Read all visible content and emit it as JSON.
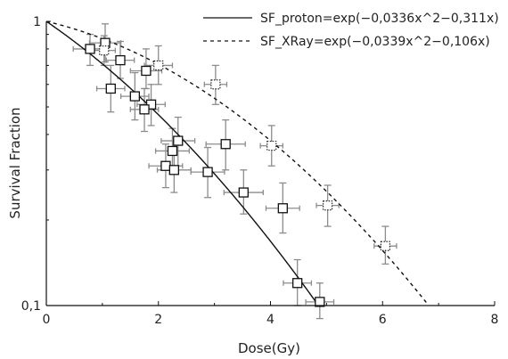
{
  "chart_data": {
    "type": "scatter",
    "xlabel": "Dose(Gy)",
    "ylabel": "Survival Fraction",
    "xlim": [
      0,
      8
    ],
    "ylim": [
      0.1,
      1
    ],
    "yscale": "log",
    "x_ticks": [
      0,
      2,
      4,
      6,
      8
    ],
    "x_tick_labels": [
      "0",
      "2",
      "4",
      "6",
      "8"
    ],
    "y_ticks": [
      0.1,
      1
    ],
    "y_tick_labels": [
      "0,1",
      "1"
    ],
    "grid": false,
    "legend_position": "top-right",
    "fit_curves": [
      {
        "name": "SF_proton=exp(−0,0336x^2−0,311x)",
        "style": "solid",
        "a": 0.0336,
        "b": 0.311
      },
      {
        "name": "SF_XRay=exp(−0,0339x^2−0,106x)",
        "style": "dashed",
        "a": 0.0339,
        "b": 0.106
      }
    ],
    "series": [
      {
        "marker": "square-solid",
        "points": [
          {
            "x": 0.78,
            "y": 0.8,
            "xerr": 0.3,
            "ylo": 0.7,
            "yhi": 0.9
          },
          {
            "x": 1.05,
            "y": 0.84,
            "xerr": 0.28,
            "ylo": 0.72,
            "yhi": 0.98
          },
          {
            "x": 1.32,
            "y": 0.73,
            "xerr": 0.25,
            "ylo": 0.63,
            "yhi": 0.85
          },
          {
            "x": 1.78,
            "y": 0.67,
            "xerr": 0.28,
            "ylo": 0.58,
            "yhi": 0.8
          },
          {
            "x": 1.15,
            "y": 0.58,
            "xerr": 0.25,
            "ylo": 0.48,
            "yhi": 0.7
          },
          {
            "x": 1.58,
            "y": 0.545,
            "xerr": 0.25,
            "ylo": 0.45,
            "yhi": 0.66
          },
          {
            "x": 1.87,
            "y": 0.51,
            "xerr": 0.25,
            "ylo": 0.43,
            "yhi": 0.6
          },
          {
            "x": 1.75,
            "y": 0.49,
            "xerr": 0.25,
            "ylo": 0.41,
            "yhi": 0.58
          },
          {
            "x": 2.35,
            "y": 0.38,
            "xerr": 0.3,
            "ylo": 0.31,
            "yhi": 0.46
          },
          {
            "x": 2.25,
            "y": 0.35,
            "xerr": 0.3,
            "ylo": 0.29,
            "yhi": 0.42
          },
          {
            "x": 2.13,
            "y": 0.31,
            "xerr": 0.3,
            "ylo": 0.26,
            "yhi": 0.37
          },
          {
            "x": 2.28,
            "y": 0.3,
            "xerr": 0.3,
            "ylo": 0.25,
            "yhi": 0.36
          },
          {
            "x": 2.88,
            "y": 0.295,
            "xerr": 0.3,
            "ylo": 0.24,
            "yhi": 0.36
          },
          {
            "x": 3.2,
            "y": 0.37,
            "xerr": 0.35,
            "ylo": 0.3,
            "yhi": 0.45
          },
          {
            "x": 3.52,
            "y": 0.25,
            "xerr": 0.35,
            "ylo": 0.21,
            "yhi": 0.3
          },
          {
            "x": 4.22,
            "y": 0.22,
            "xerr": 0.3,
            "ylo": 0.18,
            "yhi": 0.27
          },
          {
            "x": 4.48,
            "y": 0.12,
            "xerr": 0.25,
            "ylo": 0.1,
            "yhi": 0.145
          },
          {
            "x": 4.88,
            "y": 0.103,
            "xerr": 0.25,
            "ylo": 0.09,
            "yhi": 0.12
          }
        ]
      },
      {
        "marker": "square-dotted",
        "points": [
          {
            "x": 1.03,
            "y": 0.79,
            "xerr": 0.2,
            "ylo": 0.7,
            "yhi": 0.89
          },
          {
            "x": 2.0,
            "y": 0.7,
            "xerr": 0.25,
            "ylo": 0.6,
            "yhi": 0.82
          },
          {
            "x": 3.02,
            "y": 0.6,
            "xerr": 0.2,
            "ylo": 0.51,
            "yhi": 0.7
          },
          {
            "x": 4.02,
            "y": 0.365,
            "xerr": 0.2,
            "ylo": 0.31,
            "yhi": 0.43
          },
          {
            "x": 5.02,
            "y": 0.225,
            "xerr": 0.2,
            "ylo": 0.19,
            "yhi": 0.265
          },
          {
            "x": 6.05,
            "y": 0.162,
            "xerr": 0.2,
            "ylo": 0.14,
            "yhi": 0.19
          }
        ]
      }
    ]
  }
}
